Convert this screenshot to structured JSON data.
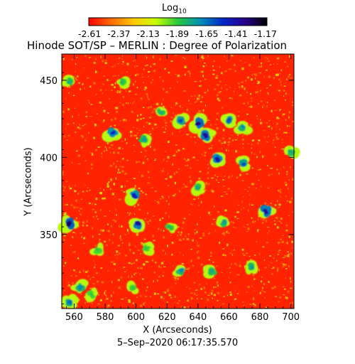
{
  "colorbar": {
    "label_main": "Log",
    "label_sub": "10",
    "tick_labels": [
      "-2.61",
      "-2.37",
      "-2.13",
      "-1.89",
      "-1.65",
      "-1.41",
      "-1.17"
    ],
    "range": [
      -2.61,
      -1.17
    ],
    "colors": [
      "#ff0000",
      "#ff6a00",
      "#ffc800",
      "#c8ff00",
      "#28c83c",
      "#0090b4",
      "#0028c8",
      "#28008c",
      "#000000"
    ]
  },
  "chart_data": {
    "type": "heatmap",
    "title": "Hinode SOT/SP – MERLIN : Degree of Polarization",
    "xlabel": "X (Arcseconds)",
    "ylabel": "Y (Arcseconds)",
    "xlim": [
      552,
      702
    ],
    "ylim": [
      302,
      467
    ],
    "x_ticks": [
      560,
      580,
      600,
      620,
      640,
      660,
      680,
      700
    ],
    "y_ticks": [
      350,
      400,
      450
    ],
    "x_tick_labels": [
      "560",
      "580",
      "600",
      "620",
      "640",
      "660",
      "680",
      "700"
    ],
    "y_tick_labels": [
      "350",
      "400",
      "450"
    ],
    "value_scale": "log10",
    "background_value": -2.55,
    "patches": [
      {
        "x": 557,
        "y": 449,
        "value": -1.8
      },
      {
        "x": 591,
        "y": 449,
        "value": -1.85
      },
      {
        "x": 616,
        "y": 429,
        "value": -1.8
      },
      {
        "x": 629,
        "y": 424,
        "value": -1.6
      },
      {
        "x": 640,
        "y": 422,
        "value": -1.35
      },
      {
        "x": 645,
        "y": 414,
        "value": -1.4
      },
      {
        "x": 660,
        "y": 424,
        "value": -1.6
      },
      {
        "x": 669,
        "y": 420,
        "value": -1.7
      },
      {
        "x": 585,
        "y": 416,
        "value": -1.5
      },
      {
        "x": 605,
        "y": 412,
        "value": -1.75
      },
      {
        "x": 653,
        "y": 399,
        "value": -1.45
      },
      {
        "x": 669,
        "y": 396,
        "value": -1.6
      },
      {
        "x": 700,
        "y": 403,
        "value": -1.8
      },
      {
        "x": 640,
        "y": 380,
        "value": -1.8
      },
      {
        "x": 599,
        "y": 375,
        "value": -1.5
      },
      {
        "x": 557,
        "y": 357,
        "value": -1.3
      },
      {
        "x": 601,
        "y": 357,
        "value": -1.4
      },
      {
        "x": 657,
        "y": 358,
        "value": -1.75
      },
      {
        "x": 684,
        "y": 365,
        "value": -1.4
      },
      {
        "x": 622,
        "y": 355,
        "value": -1.85
      },
      {
        "x": 575,
        "y": 340,
        "value": -1.9
      },
      {
        "x": 607,
        "y": 341,
        "value": -1.9
      },
      {
        "x": 629,
        "y": 327,
        "value": -1.7
      },
      {
        "x": 649,
        "y": 326,
        "value": -1.8
      },
      {
        "x": 675,
        "y": 329,
        "value": -1.75
      },
      {
        "x": 564,
        "y": 316,
        "value": -1.7
      },
      {
        "x": 571,
        "y": 311,
        "value": -1.9
      },
      {
        "x": 557,
        "y": 306,
        "value": -1.65
      },
      {
        "x": 598,
        "y": 315,
        "value": -1.9
      }
    ]
  },
  "timestamp": "5–Sep–2020 06:17:35.570"
}
